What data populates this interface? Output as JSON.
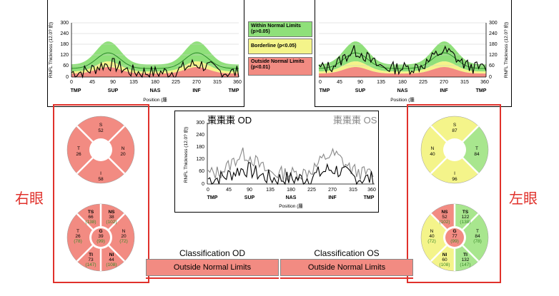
{
  "colors": {
    "within": "#8fe07a",
    "borderline": "#f4f48a",
    "outside": "#f28b82",
    "annotation": "#e0312b"
  },
  "legend": {
    "within": "Within Normal Limits (p>0.05)",
    "borderline": "Borderline (p<0.05)",
    "outside": "Outside Normal Limits (p<0.01)"
  },
  "axis": {
    "ylabel": "RNFL Thickness (12.0? 約)",
    "xlabel": "Position (腫",
    "yticks": [
      "300",
      "240",
      "180",
      "120",
      "60",
      "0"
    ],
    "xticks": [
      "0",
      "45",
      "90",
      "135",
      "180",
      "225",
      "270",
      "315",
      "360"
    ],
    "regions": [
      "TMP",
      "SUP",
      "NAS",
      "INF",
      "TMP"
    ]
  },
  "compare": {
    "od_title": "棗棗棗 OD",
    "os_title": "棗棗棗 OS"
  },
  "od": {
    "label": "右眼",
    "quadrants": {
      "S": {
        "label": "S",
        "value": "52"
      },
      "T": {
        "label": "T",
        "value": "26"
      },
      "N": {
        "label": "N",
        "value": "20"
      },
      "I": {
        "label": "I",
        "value": "58"
      }
    },
    "sectors": {
      "TS": {
        "label": "TS",
        "value": "66",
        "ref": "(138)"
      },
      "NS": {
        "label": "NS",
        "value": "38",
        "ref": "(102)"
      },
      "T": {
        "label": "T",
        "value": "26",
        "ref": "(78)"
      },
      "G": {
        "label": "G",
        "value": "39",
        "ref": "(99)"
      },
      "N": {
        "label": "N",
        "value": "20",
        "ref": "(72)"
      },
      "TI": {
        "label": "TI",
        "value": "73",
        "ref": "(147)"
      },
      "NI": {
        "label": "NI",
        "value": "44",
        "ref": "(108)"
      }
    },
    "classification_title": "Classification OD",
    "classification_value": "Outside Normal Limits"
  },
  "os": {
    "label": "左眼",
    "quadrants": {
      "S": {
        "label": "S",
        "value": "87"
      },
      "N": {
        "label": "N",
        "value": "40"
      },
      "T": {
        "label": "T",
        "value": "84"
      },
      "I": {
        "label": "I",
        "value": "96"
      }
    },
    "sectors": {
      "NS": {
        "label": "NS",
        "value": "52",
        "ref": "(102)"
      },
      "TS": {
        "label": "TS",
        "value": "122",
        "ref": "(138)"
      },
      "N": {
        "label": "N",
        "value": "40",
        "ref": "(72)"
      },
      "G": {
        "label": "G",
        "value": "77",
        "ref": "(99)"
      },
      "T": {
        "label": "T",
        "value": "84",
        "ref": "(78)"
      },
      "NI": {
        "label": "NI",
        "value": "60",
        "ref": "(108)"
      },
      "TI": {
        "label": "TI",
        "value": "132",
        "ref": "(147)"
      }
    },
    "classification_title": "Classification OS",
    "classification_value": "Outside Normal Limits"
  }
}
